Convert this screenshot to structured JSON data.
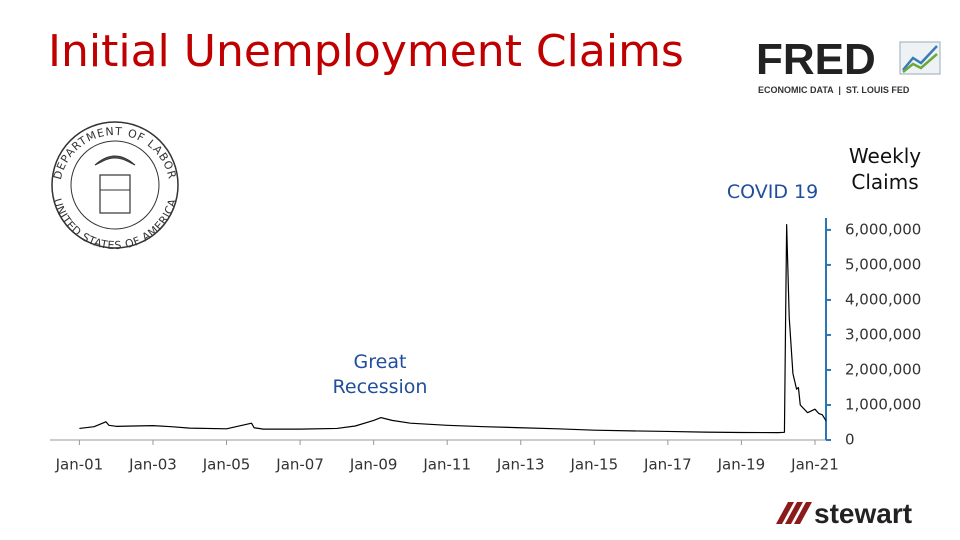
{
  "chart_data": {
    "type": "line",
    "title": "Initial Unemployment Claims",
    "y_label": "Weekly Claims",
    "annotations": [
      "Great Recession",
      "COVID 19"
    ],
    "x": [
      2001.0,
      2001.4,
      2001.72,
      2001.8,
      2002.0,
      2003.0,
      2003.5,
      2004.0,
      2005.0,
      2005.68,
      2005.75,
      2006.0,
      2007.0,
      2008.0,
      2008.5,
      2009.0,
      2009.2,
      2009.5,
      2010.0,
      2011.0,
      2012.0,
      2013.0,
      2014.0,
      2015.0,
      2016.0,
      2017.0,
      2018.0,
      2019.0,
      2020.0,
      2020.17,
      2020.2,
      2020.23,
      2020.3,
      2020.4,
      2020.5,
      2020.55,
      2020.6,
      2020.8,
      2021.0,
      2021.1,
      2021.2,
      2021.3
    ],
    "values": [
      330000,
      380000,
      520000,
      420000,
      390000,
      410000,
      380000,
      340000,
      320000,
      480000,
      350000,
      310000,
      310000,
      330000,
      400000,
      560000,
      640000,
      560000,
      480000,
      420000,
      380000,
      350000,
      320000,
      280000,
      260000,
      245000,
      225000,
      215000,
      210000,
      220000,
      3300000,
      6150000,
      3500000,
      1900000,
      1450000,
      1500000,
      1000000,
      780000,
      880000,
      760000,
      720000,
      550000
    ],
    "color": "#000000",
    "axis_color": "#2e75b6",
    "xlim": [
      2000.2,
      2021.3
    ],
    "xticks": [
      {
        "value": 2001,
        "label": "Jan-01"
      },
      {
        "value": 2003,
        "label": "Jan-03"
      },
      {
        "value": 2005,
        "label": "Jan-05"
      },
      {
        "value": 2007,
        "label": "Jan-07"
      },
      {
        "value": 2009,
        "label": "Jan-09"
      },
      {
        "value": 2011,
        "label": "Jan-11"
      },
      {
        "value": 2013,
        "label": "Jan-13"
      },
      {
        "value": 2015,
        "label": "Jan-15"
      },
      {
        "value": 2017,
        "label": "Jan-17"
      },
      {
        "value": 2019,
        "label": "Jan-19"
      },
      {
        "value": 2021,
        "label": "Jan-21"
      }
    ],
    "ylim": [
      0,
      6340000
    ],
    "yticks": [
      0,
      {
        "value": 1000000,
        "label": "1,000,000"
      },
      {
        "value": 2000000,
        "label": "2,000,000"
      },
      {
        "value": 3000000,
        "label": "3,000,000"
      },
      {
        "value": 4000000,
        "label": "4,000,000"
      },
      {
        "value": 5000000,
        "label": "5,000,000"
      },
      {
        "value": 6000000,
        "label": "6,000,000"
      }
    ],
    "grid": false
  },
  "logos": {
    "fred": "FRED",
    "fred_tagline": "ECONOMIC DATA  |  ST. LOUIS FED",
    "stewart": "stewart",
    "seal_top": "DEPARTMENT OF LABOR",
    "seal_bottom": "UNITED STATES OF AMERICA"
  }
}
